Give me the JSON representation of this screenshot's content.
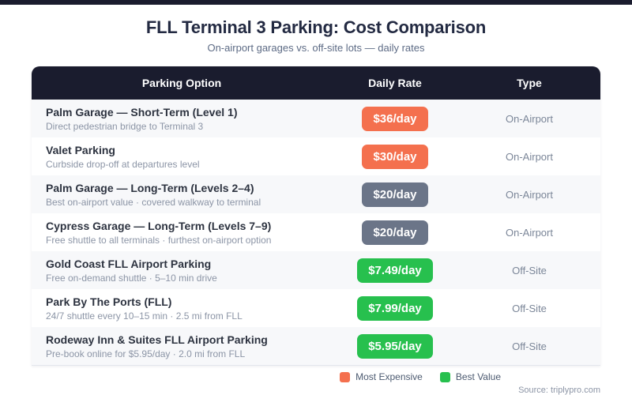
{
  "chart_data": {
    "type": "table",
    "title": "FLL Terminal 3 Parking: Cost Comparison",
    "subtitle": "On-airport garages vs. off-site lots — daily rates",
    "columns": [
      "Parking Option",
      "Daily Rate",
      "Type"
    ],
    "rows": [
      {
        "name": "Palm Garage — Short-Term (Level 1)",
        "description": "Direct pedestrian bridge to Terminal 3",
        "rate_label": "$36/day",
        "daily_rate_usd": 36.0,
        "highlight": "expensive",
        "type": "On-Airport"
      },
      {
        "name": "Valet Parking",
        "description": "Curbside drop-off at departures level",
        "rate_label": "$30/day",
        "daily_rate_usd": 30.0,
        "highlight": "expensive",
        "type": "On-Airport"
      },
      {
        "name": "Palm Garage — Long-Term (Levels 2–4)",
        "description": "Best on-airport value · covered walkway to terminal",
        "rate_label": "$20/day",
        "daily_rate_usd": 20.0,
        "highlight": "neutral",
        "type": "On-Airport"
      },
      {
        "name": "Cypress Garage — Long-Term (Levels 7–9)",
        "description": "Free shuttle to all terminals · furthest on-airport option",
        "rate_label": "$20/day",
        "daily_rate_usd": 20.0,
        "highlight": "neutral",
        "type": "On-Airport"
      },
      {
        "name": "Gold Coast FLL Airport Parking",
        "description": "Free on-demand shuttle · 5–10 min drive",
        "rate_label": "$7.49/day",
        "daily_rate_usd": 7.49,
        "highlight": "value",
        "type": "Off-Site"
      },
      {
        "name": "Park By The Ports (FLL)",
        "description": "24/7 shuttle every 10–15 min · 2.5 mi from FLL",
        "rate_label": "$7.99/day",
        "daily_rate_usd": 7.99,
        "highlight": "value",
        "type": "Off-Site"
      },
      {
        "name": "Rodeway Inn & Suites FLL Airport Parking",
        "description": "Pre-book online for $5.95/day · 2.0 mi from FLL",
        "rate_label": "$5.95/day",
        "daily_rate_usd": 5.95,
        "highlight": "value",
        "type": "Off-Site"
      }
    ],
    "legend": [
      {
        "label": "Most Expensive",
        "color": "#f4704e"
      },
      {
        "label": "Best Value",
        "color": "#27c04e"
      }
    ],
    "source": "Source: triplypro.com"
  },
  "colors": {
    "accent_bar": "#1a1c2e",
    "header_bg": "#1a1c2e",
    "badge": {
      "expensive": "#f4704e",
      "neutral": "#6b7588",
      "value": "#27c04e"
    },
    "row_alt_bg": "#f7f8fa",
    "title_text": "#232a42",
    "subtitle_text": "#5d6b85"
  }
}
